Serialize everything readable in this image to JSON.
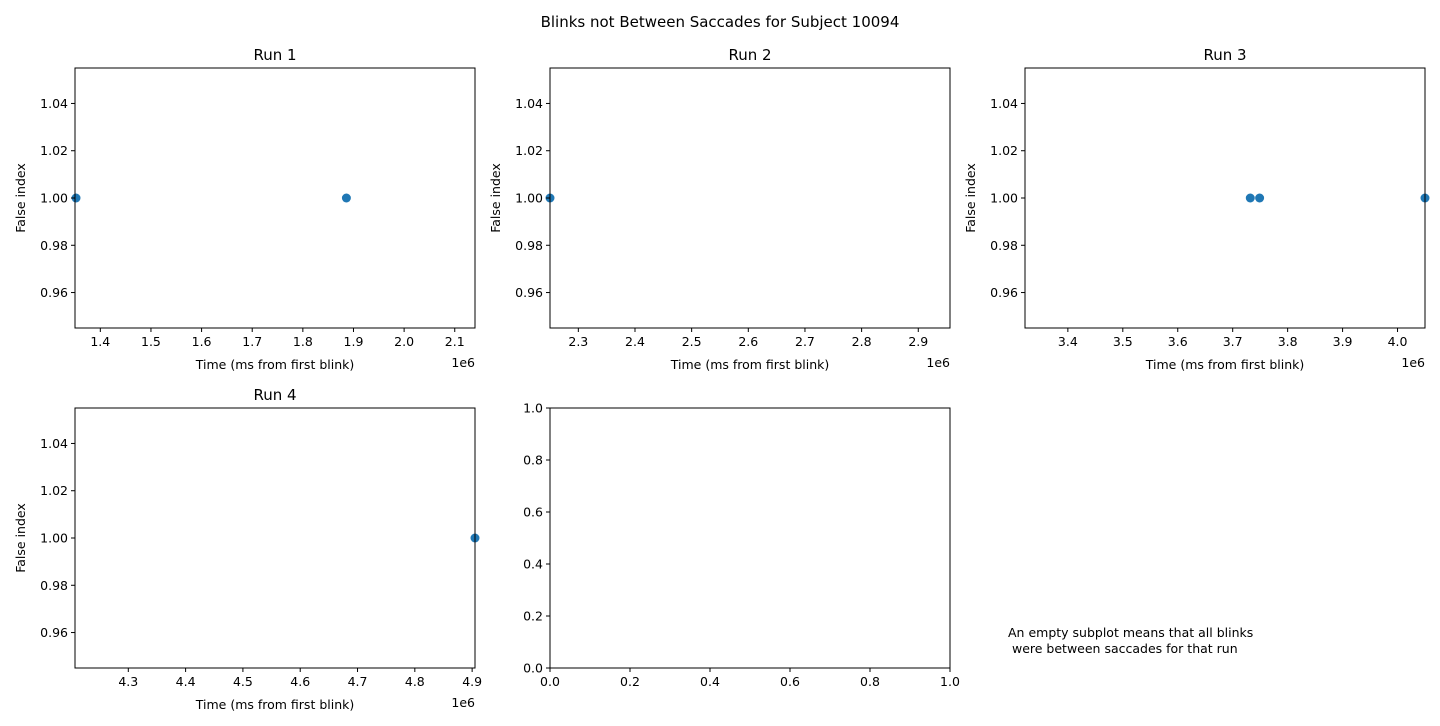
{
  "figure": {
    "title": "Blinks not Between Saccades for Subject 10094",
    "note_lines": [
      "An empty subplot means that all blinks",
      " were between saccades for that run"
    ]
  },
  "colors": {
    "marker": "#1f77b4",
    "axes": "#000000"
  },
  "chart_data": [
    {
      "type": "scatter",
      "title": "Run 1",
      "xlabel": "Time (ms from first blink)",
      "ylabel": "False index",
      "x_offset_label": "1e6",
      "xlim": [
        1.35,
        2.14
      ],
      "ylim": [
        0.945,
        1.055
      ],
      "xticks": [
        1.4,
        1.5,
        1.6,
        1.7,
        1.8,
        1.9,
        2.0,
        2.1
      ],
      "xtick_labels": [
        "1.4",
        "1.5",
        "1.6",
        "1.7",
        "1.8",
        "1.9",
        "2.0",
        "2.1"
      ],
      "yticks": [
        0.96,
        0.98,
        1.0,
        1.02,
        1.04
      ],
      "ytick_labels": [
        "0.96",
        "0.98",
        "1.00",
        "1.02",
        "1.04"
      ],
      "points": [
        {
          "x": 1.352,
          "y": 1.0
        },
        {
          "x": 1.886,
          "y": 1.0
        }
      ]
    },
    {
      "type": "scatter",
      "title": "Run 2",
      "xlabel": "Time (ms from first blink)",
      "ylabel": "False index",
      "x_offset_label": "1e6",
      "xlim": [
        2.25,
        2.956
      ],
      "ylim": [
        0.945,
        1.055
      ],
      "xticks": [
        2.3,
        2.4,
        2.5,
        2.6,
        2.7,
        2.8,
        2.9
      ],
      "xtick_labels": [
        "2.3",
        "2.4",
        "2.5",
        "2.6",
        "2.7",
        "2.8",
        "2.9"
      ],
      "yticks": [
        0.96,
        0.98,
        1.0,
        1.02,
        1.04
      ],
      "ytick_labels": [
        "0.96",
        "0.98",
        "1.00",
        "1.02",
        "1.04"
      ],
      "points": [
        {
          "x": 2.25,
          "y": 1.0
        }
      ]
    },
    {
      "type": "scatter",
      "title": "Run 3",
      "xlabel": "Time (ms from first blink)",
      "ylabel": "False index",
      "x_offset_label": "1e6",
      "xlim": [
        3.322,
        4.05
      ],
      "ylim": [
        0.945,
        1.055
      ],
      "xticks": [
        3.4,
        3.5,
        3.6,
        3.7,
        3.8,
        3.9,
        4.0
      ],
      "xtick_labels": [
        "3.4",
        "3.5",
        "3.6",
        "3.7",
        "3.8",
        "3.9",
        "4.0"
      ],
      "yticks": [
        0.96,
        0.98,
        1.0,
        1.02,
        1.04
      ],
      "ytick_labels": [
        "0.96",
        "0.98",
        "1.00",
        "1.02",
        "1.04"
      ],
      "points": [
        {
          "x": 3.732,
          "y": 1.0
        },
        {
          "x": 3.749,
          "y": 1.0
        },
        {
          "x": 4.05,
          "y": 1.0
        }
      ]
    },
    {
      "type": "scatter",
      "title": "Run 4",
      "xlabel": "Time (ms from first blink)",
      "ylabel": "False index",
      "x_offset_label": "1e6",
      "xlim": [
        4.207,
        4.905
      ],
      "ylim": [
        0.945,
        1.055
      ],
      "xticks": [
        4.3,
        4.4,
        4.5,
        4.6,
        4.7,
        4.8,
        4.9
      ],
      "xtick_labels": [
        "4.3",
        "4.4",
        "4.5",
        "4.6",
        "4.7",
        "4.8",
        "4.9"
      ],
      "yticks": [
        0.96,
        0.98,
        1.0,
        1.02,
        1.04
      ],
      "ytick_labels": [
        "0.96",
        "0.98",
        "1.00",
        "1.02",
        "1.04"
      ],
      "points": [
        {
          "x": 4.905,
          "y": 1.0
        }
      ]
    },
    {
      "type": "scatter",
      "title": "",
      "xlabel": "",
      "ylabel": "",
      "x_offset_label": "",
      "xlim": [
        0,
        1
      ],
      "ylim": [
        0,
        1
      ],
      "xticks": [
        0,
        0.2,
        0.4,
        0.6,
        0.8,
        1.0
      ],
      "xtick_labels": [
        "0.0",
        "0.2",
        "0.4",
        "0.6",
        "0.8",
        "1.0"
      ],
      "yticks": [
        0,
        0.2,
        0.4,
        0.6,
        0.8,
        1.0
      ],
      "ytick_labels": [
        "0.0",
        "0.2",
        "0.4",
        "0.6",
        "0.8",
        "1.0"
      ],
      "points": []
    }
  ]
}
